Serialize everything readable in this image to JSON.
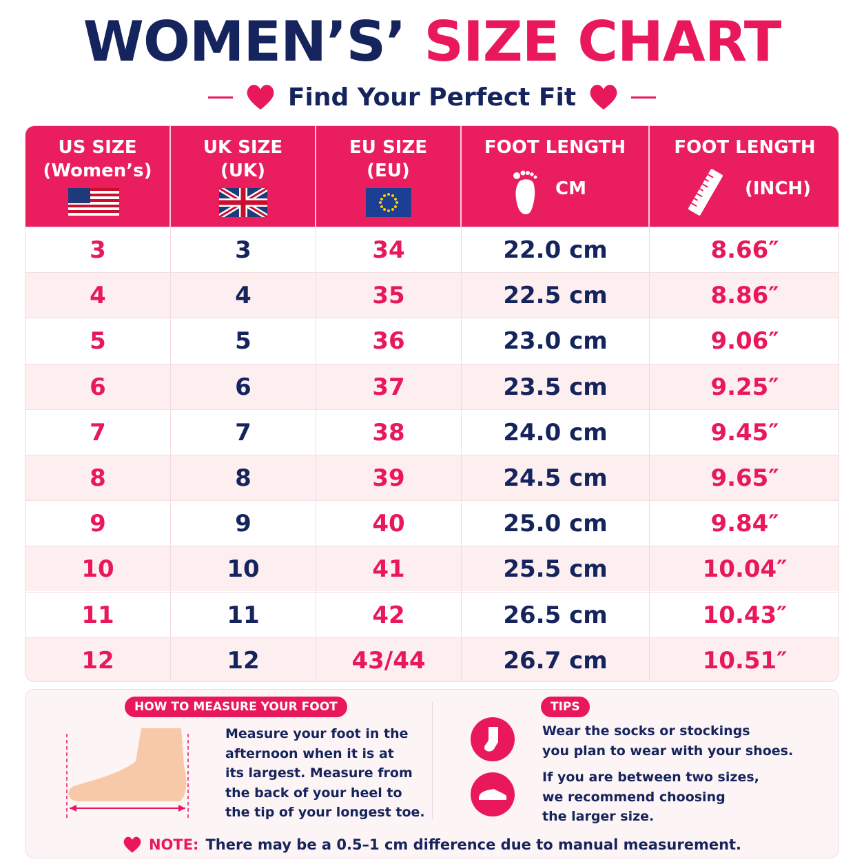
{
  "header": {
    "title_part1": "WOMEN’S’",
    "title_part2": "SIZE CHART",
    "subtitle": "Find Your Perfect Fit"
  },
  "table": {
    "columns": [
      {
        "line1": "US SIZE",
        "line2": "(Women’s)"
      },
      {
        "line1": "UK SIZE",
        "line2": "(UK)"
      },
      {
        "line1": "EU SIZE",
        "line2": "(EU)"
      },
      {
        "line1": "FOOT LENGTH",
        "line2": "CM"
      },
      {
        "line1": "FOOT LENGTH",
        "line2": "(INCH)"
      }
    ],
    "rows": [
      [
        "3",
        "3",
        "34",
        "22.0 cm",
        "8.66″"
      ],
      [
        "4",
        "4",
        "35",
        "22.5 cm",
        "8.86″"
      ],
      [
        "5",
        "5",
        "36",
        "23.0 cm",
        "9.06″"
      ],
      [
        "6",
        "6",
        "37",
        "23.5 cm",
        "9.25″"
      ],
      [
        "7",
        "7",
        "38",
        "24.0 cm",
        "9.45″"
      ],
      [
        "8",
        "8",
        "39",
        "24.5 cm",
        "9.65″"
      ],
      [
        "9",
        "9",
        "40",
        "25.0 cm",
        "9.84″"
      ],
      [
        "10",
        "10",
        "41",
        "25.5 cm",
        "10.04″"
      ],
      [
        "11",
        "11",
        "42",
        "26.5 cm",
        "10.43″"
      ],
      [
        "12",
        "12",
        "43/44",
        "26.7 cm",
        "10.51″"
      ]
    ]
  },
  "measure": {
    "badge": "HOW TO MEASURE YOUR FOOT",
    "lines": [
      "Measure your foot in the",
      "afternoon when it is at",
      "its largest. Measure from",
      "the back of your heel to",
      "the tip of your longest toe."
    ]
  },
  "tips": {
    "badge": "TIPS",
    "items": [
      [
        "Wear the socks or stockings",
        "you plan to wear with your shoes."
      ],
      [
        "If you are between two sizes,",
        "we recommend choosing",
        "the larger size."
      ]
    ]
  },
  "note": {
    "label": "NOTE:",
    "text": "There may be a 0.5–1 cm difference due to manual measurement."
  }
}
